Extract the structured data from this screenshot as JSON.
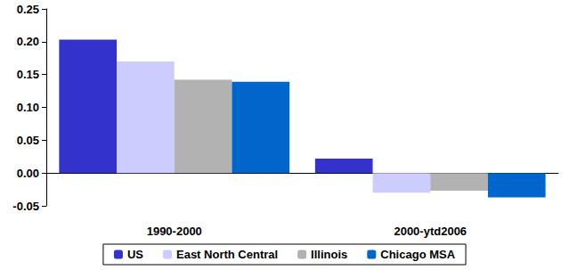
{
  "chart_data": {
    "type": "bar",
    "categories": [
      "1990-2000",
      "2000-ytd2006"
    ],
    "series": [
      {
        "name": "US",
        "color": "#3333cc",
        "values": [
          0.203,
          0.022
        ]
      },
      {
        "name": "East North Central",
        "color": "#ccccff",
        "values": [
          0.17,
          -0.03
        ]
      },
      {
        "name": "Illinois",
        "color": "#b2b2b2",
        "values": [
          0.142,
          -0.027
        ]
      },
      {
        "name": "Chicago MSA",
        "color": "#0066cc",
        "values": [
          0.139,
          -0.037
        ]
      }
    ],
    "ylim": [
      -0.05,
      0.25
    ],
    "yticks": [
      -0.05,
      {
        "value": 0,
        "label": "0.00"
      },
      0.05,
      {
        "value": 0.1,
        "label": "0.10"
      },
      0.15,
      {
        "value": 0.2,
        "label": "0.20"
      },
      0.25
    ],
    "grid": false,
    "legend": "bottom"
  }
}
